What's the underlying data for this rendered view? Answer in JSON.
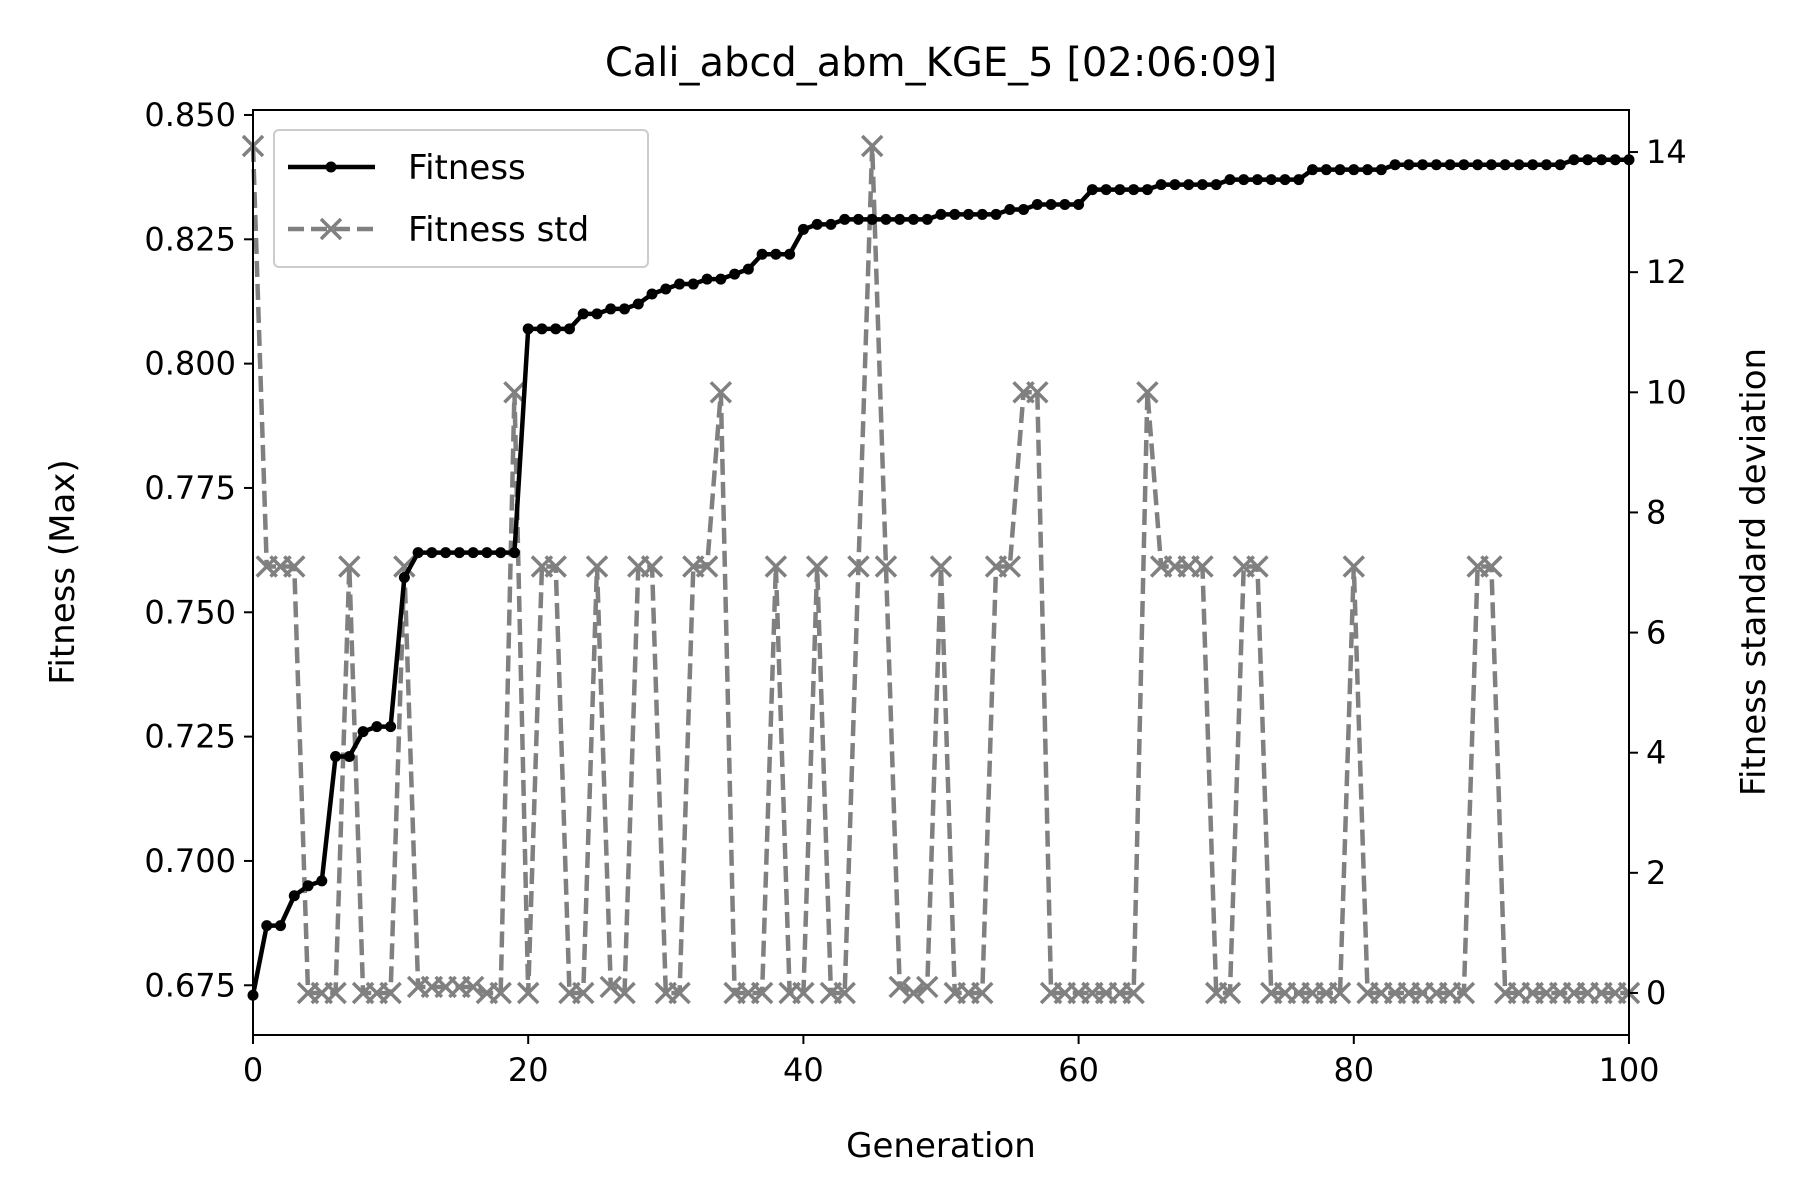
{
  "chart_data": {
    "type": "line",
    "title": "Cali_abcd_abm_KGE_5  [02:06:09]",
    "xlabel": "Generation",
    "ylabel": "Fitness (Max)",
    "y2label": "Fitness standard deviation",
    "xlim": [
      0,
      100
    ],
    "ylim": [
      0.665,
      0.851
    ],
    "y2lim": [
      -0.7,
      14.7
    ],
    "xticks": [
      0,
      20,
      40,
      60,
      80,
      100
    ],
    "yticks": [
      0.675,
      0.7,
      0.725,
      0.75,
      0.775,
      0.8,
      0.825,
      0.85
    ],
    "y2ticks": [
      0,
      2,
      4,
      6,
      8,
      10,
      12,
      14
    ],
    "grid": false,
    "legend_position": "upper-left",
    "x": [
      0,
      1,
      2,
      3,
      4,
      5,
      6,
      7,
      8,
      9,
      10,
      11,
      12,
      13,
      14,
      15,
      16,
      17,
      18,
      19,
      20,
      21,
      22,
      23,
      24,
      25,
      26,
      27,
      28,
      29,
      30,
      31,
      32,
      33,
      34,
      35,
      36,
      37,
      38,
      39,
      40,
      41,
      42,
      43,
      44,
      45,
      46,
      47,
      48,
      49,
      50,
      51,
      52,
      53,
      54,
      55,
      56,
      57,
      58,
      59,
      60,
      61,
      62,
      63,
      64,
      65,
      66,
      67,
      68,
      69,
      70,
      71,
      72,
      73,
      74,
      75,
      76,
      77,
      78,
      79,
      80,
      81,
      82,
      83,
      84,
      85,
      86,
      87,
      88,
      89,
      90,
      91,
      92,
      93,
      94,
      95,
      96,
      97,
      98,
      99,
      100
    ],
    "series": [
      {
        "name": "Fitness",
        "axis": "left",
        "color": "#000000",
        "linestyle": "solid",
        "marker": "dot",
        "values": [
          0.673,
          0.687,
          0.687,
          0.693,
          0.695,
          0.696,
          0.721,
          0.721,
          0.726,
          0.727,
          0.727,
          0.757,
          0.762,
          0.762,
          0.762,
          0.762,
          0.762,
          0.762,
          0.762,
          0.762,
          0.807,
          0.807,
          0.807,
          0.807,
          0.81,
          0.81,
          0.811,
          0.811,
          0.812,
          0.814,
          0.815,
          0.816,
          0.816,
          0.817,
          0.817,
          0.818,
          0.819,
          0.822,
          0.822,
          0.822,
          0.827,
          0.828,
          0.828,
          0.829,
          0.829,
          0.829,
          0.829,
          0.829,
          0.829,
          0.829,
          0.83,
          0.83,
          0.83,
          0.83,
          0.83,
          0.831,
          0.831,
          0.832,
          0.832,
          0.832,
          0.832,
          0.835,
          0.835,
          0.835,
          0.835,
          0.835,
          0.836,
          0.836,
          0.836,
          0.836,
          0.836,
          0.837,
          0.837,
          0.837,
          0.837,
          0.837,
          0.837,
          0.839,
          0.839,
          0.839,
          0.839,
          0.839,
          0.839,
          0.84,
          0.84,
          0.84,
          0.84,
          0.84,
          0.84,
          0.84,
          0.84,
          0.84,
          0.84,
          0.84,
          0.84,
          0.84,
          0.841,
          0.841,
          0.841,
          0.841,
          0.841
        ]
      },
      {
        "name": "Fitness std",
        "axis": "right",
        "color": "#808080",
        "linestyle": "dashed",
        "marker": "x",
        "values": [
          14.1,
          7.1,
          7.1,
          7.1,
          0,
          0,
          0,
          7.1,
          0,
          0,
          0,
          7.1,
          0.1,
          0.1,
          0.1,
          0.1,
          0.1,
          0,
          0,
          10,
          0,
          7.1,
          7.1,
          0,
          0,
          7.1,
          0.1,
          0,
          7.1,
          7.1,
          0,
          0,
          7.1,
          7.1,
          10,
          0,
          0,
          0,
          7.1,
          0,
          0,
          7.1,
          0,
          0,
          7.1,
          14.1,
          7.1,
          0.1,
          0,
          0.1,
          7.1,
          0,
          0,
          0,
          7.1,
          7.1,
          10,
          10,
          0,
          0,
          0,
          0,
          0,
          0,
          0,
          10,
          7.1,
          7.1,
          7.1,
          7.1,
          0,
          0,
          7.1,
          7.1,
          0,
          0,
          0,
          0,
          0,
          0,
          7.1,
          0,
          0,
          0,
          0,
          0,
          0,
          0,
          0,
          7.1,
          7.1,
          0,
          0,
          0,
          0,
          0,
          0,
          0,
          0,
          0,
          0
        ]
      }
    ]
  }
}
